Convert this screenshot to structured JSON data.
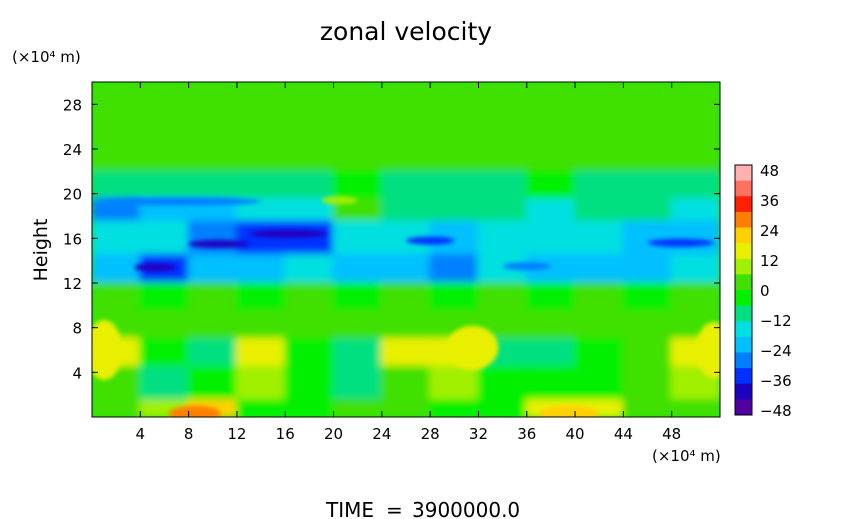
{
  "chart_data": {
    "type": "heatmap",
    "title": "zonal velocity",
    "ylabel": "Height",
    "y_unit_label": "(×10⁴ m)",
    "x_unit_label": "(×10⁴ m)",
    "xlabel": "",
    "x_ticks": [
      "4",
      "8",
      "12",
      "16",
      "20",
      "24",
      "28",
      "32",
      "36",
      "40",
      "44",
      "48"
    ],
    "y_ticks": [
      "4",
      "8",
      "12",
      "16",
      "20",
      "24",
      "28"
    ],
    "xlim": [
      0,
      52
    ],
    "ylim": [
      0,
      30
    ],
    "colorbar": {
      "ticks": [
        "48",
        "36",
        "24",
        "12",
        "0",
        "−12",
        "−24",
        "−36",
        "−48"
      ],
      "range": [
        -48,
        48
      ],
      "colors": [
        "#ffb0b0",
        "#ff7060",
        "#ff2000",
        "#ff8000",
        "#ffd000",
        "#e8f000",
        "#a0f000",
        "#40e000",
        "#00f000",
        "#00e080",
        "#00e0e0",
        "#00c0ff",
        "#0080ff",
        "#0030ff",
        "#2000c0",
        "#5000a0"
      ]
    },
    "field_description_rows": [
      {
        "y": 28,
        "values": [
          2,
          2,
          2,
          2,
          2,
          2,
          2,
          2,
          2,
          2,
          2,
          2,
          2
        ]
      },
      {
        "y": 24,
        "values": [
          2,
          2,
          2,
          2,
          2,
          2,
          2,
          2,
          2,
          2,
          2,
          2,
          2
        ]
      },
      {
        "y": 20,
        "values": [
          -8,
          -6,
          -8,
          -6,
          -6,
          -4,
          -6,
          -6,
          -6,
          -4,
          -6,
          -6,
          -6
        ]
      },
      {
        "y": 19,
        "values": [
          -28,
          -20,
          -18,
          -12,
          -14,
          6,
          -10,
          -8,
          -8,
          -12,
          -10,
          -10,
          -16
        ]
      },
      {
        "y": 16,
        "values": [
          -16,
          -14,
          -24,
          -34,
          -30,
          -14,
          -16,
          -18,
          -12,
          -16,
          -14,
          -18,
          -20
        ]
      },
      {
        "y": 13,
        "values": [
          -22,
          -34,
          -20,
          -18,
          -16,
          -20,
          -18,
          -24,
          -16,
          -18,
          -22,
          -18,
          -16
        ]
      },
      {
        "y": 11,
        "values": [
          2,
          0,
          2,
          0,
          2,
          0,
          2,
          0,
          2,
          0,
          2,
          0,
          2
        ]
      },
      {
        "y": 8,
        "values": [
          4,
          2,
          4,
          2,
          4,
          2,
          4,
          2,
          4,
          2,
          4,
          2,
          4
        ]
      },
      {
        "y": 6,
        "values": [
          18,
          -4,
          -6,
          14,
          0,
          -8,
          14,
          18,
          -6,
          -6,
          -2,
          6,
          14
        ]
      },
      {
        "y": 3,
        "values": [
          6,
          -6,
          -4,
          8,
          -2,
          -6,
          6,
          10,
          -4,
          -4,
          -2,
          4,
          8
        ]
      },
      {
        "y": 0,
        "values": [
          4,
          10,
          20,
          0,
          0,
          2,
          6,
          0,
          0,
          14,
          18,
          4,
          2
        ]
      }
    ]
  },
  "footer": {
    "time_label": "TIME",
    "equals": "=",
    "time_value": "3900000.0"
  }
}
